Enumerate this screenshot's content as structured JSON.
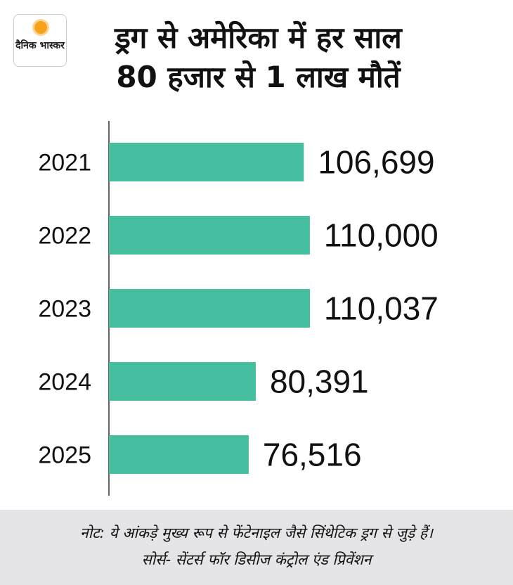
{
  "logo": {
    "text": "दैनिक भास्कर"
  },
  "title": {
    "line1": "ड्रग से अमेरिका में हर साल",
    "line2": "80 हजार से 1 लाख मौतें"
  },
  "chart_data": {
    "type": "bar",
    "orientation": "horizontal",
    "categories": [
      "2021",
      "2022",
      "2023",
      "2024",
      "2025"
    ],
    "values": [
      106699,
      110000,
      110037,
      80391,
      76516
    ],
    "value_labels": [
      "106,699",
      "110,000",
      "110,037",
      "80,391",
      "76,516"
    ],
    "xlim": [
      0,
      110037
    ],
    "bar_color": "#45bf9f",
    "grid": false
  },
  "footer": {
    "note": "नोट: ये आंकड़े मुख्य रूप से फेंटेनाइल जैसे सिंथेटिक ड्रग से जुड़े हैं।",
    "source": "सोर्स- सेंटर्स फॉर डिसीज कंट्रोल एंड प्रिवेंशन"
  }
}
